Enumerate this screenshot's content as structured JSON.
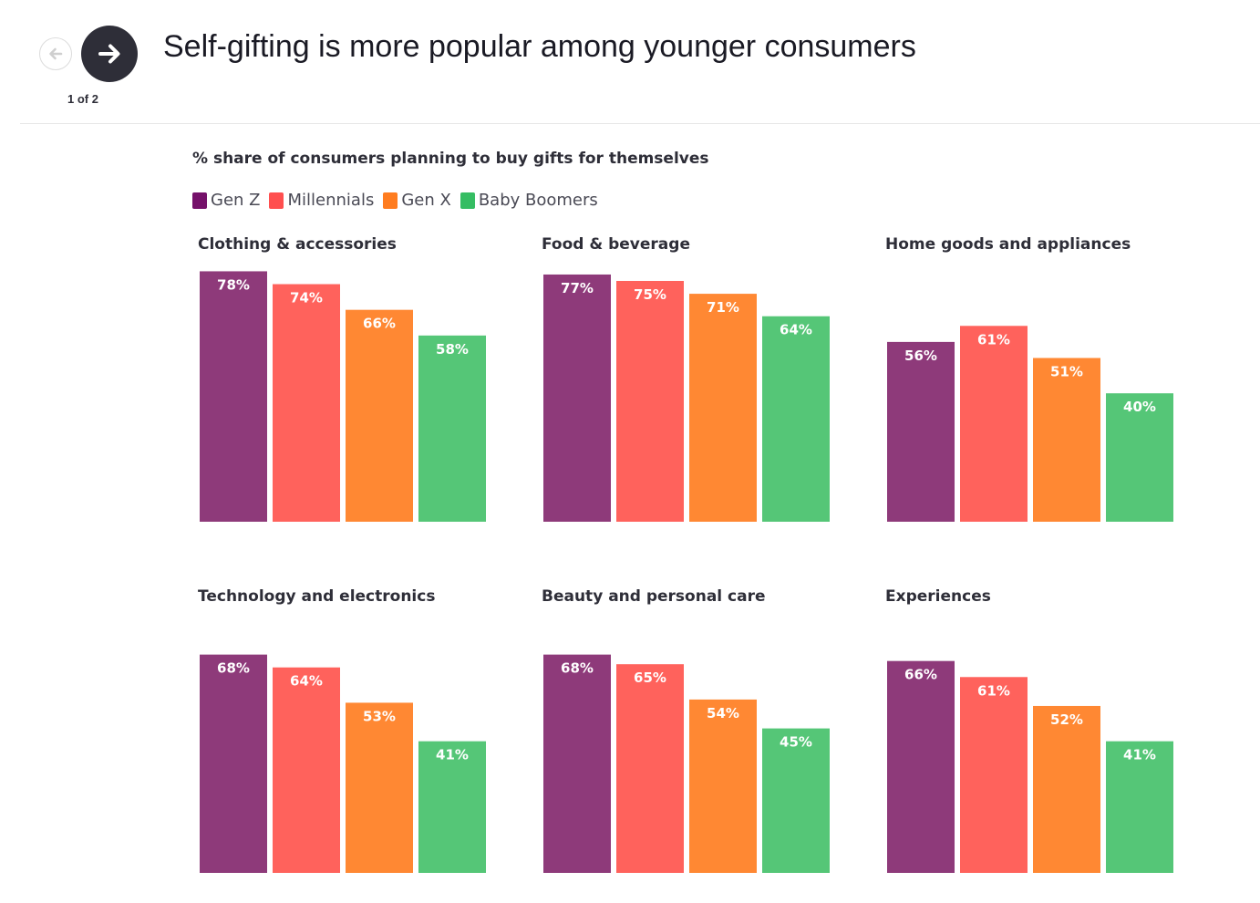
{
  "header": {
    "title": "Self-gifting is more popular among younger consumers",
    "pager": "1 of 2"
  },
  "chart_data": {
    "type": "bar",
    "title": "% share of consumers planning to buy gifts for themselves",
    "legend": [
      "Gen Z",
      "Millennials",
      "Gen X",
      "Baby Boomers"
    ],
    "colors": [
      "#8e3a7a",
      "#ff625c",
      "#ff8833",
      "#55c677"
    ],
    "legend_colors": [
      "#75116a",
      "#ff4f4f",
      "#ff7c1f",
      "#35bd63"
    ],
    "unit": "%",
    "panels": [
      {
        "title": "Clothing & accessories",
        "categories": [
          "Gen Z",
          "Millennials",
          "Gen X",
          "Baby Boomers"
        ],
        "values": [
          78,
          74,
          66,
          58
        ]
      },
      {
        "title": "Food & beverage",
        "categories": [
          "Gen Z",
          "Millennials",
          "Gen X",
          "Baby Boomers"
        ],
        "values": [
          77,
          75,
          71,
          64
        ]
      },
      {
        "title": "Home goods and appliances",
        "categories": [
          "Gen Z",
          "Millennials",
          "Gen X",
          "Baby Boomers"
        ],
        "values": [
          56,
          61,
          51,
          40
        ]
      },
      {
        "title": "Technology and electronics",
        "categories": [
          "Gen Z",
          "Millennials",
          "Gen X",
          "Baby Boomers"
        ],
        "values": [
          68,
          64,
          53,
          41
        ]
      },
      {
        "title": "Beauty and personal care",
        "categories": [
          "Gen Z",
          "Millennials",
          "Gen X",
          "Baby Boomers"
        ],
        "values": [
          68,
          65,
          54,
          45
        ]
      },
      {
        "title": "Experiences",
        "categories": [
          "Gen Z",
          "Millennials",
          "Gen X",
          "Baby Boomers"
        ],
        "values": [
          66,
          61,
          52,
          41
        ]
      }
    ]
  }
}
